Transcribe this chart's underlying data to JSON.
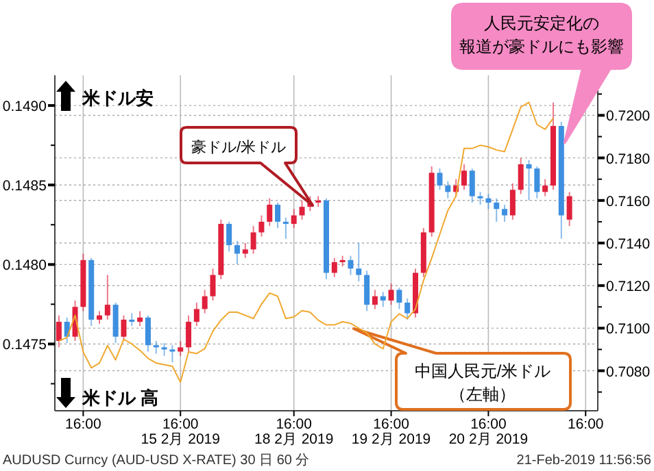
{
  "chart_data": {
    "type": "candlestick",
    "categories": [
      null,
      null,
      null,
      "16:00",
      null,
      null,
      null,
      null,
      null,
      null,
      null,
      null,
      null,
      null,
      null,
      "16:00\n15 2月 2019",
      null,
      null,
      null,
      null,
      null,
      null,
      null,
      null,
      null,
      null,
      null,
      null,
      null,
      "16:00\n18 2月 2019",
      null,
      null,
      null,
      null,
      null,
      null,
      null,
      null,
      null,
      null,
      null,
      "16:00\n19 2月 2019",
      null,
      null,
      null,
      null,
      null,
      null,
      null,
      null,
      null,
      null,
      null,
      "16:00\n20 2月 2019",
      null,
      null,
      null,
      null,
      null,
      null,
      null,
      null,
      null,
      null,
      null,
      "16:00",
      null
    ],
    "ylim": [
      0.14708,
      0.14919
    ],
    "yticks": [
      {
        "value": 0.1475,
        "label": "0.1475"
      },
      {
        "value": 0.148,
        "label": "0.1480"
      },
      {
        "value": 0.1485,
        "label": "0.1485"
      },
      {
        "value": 0.149,
        "label": "0.1490"
      },
      {
        "value": 0.14725,
        "label": null
      },
      {
        "value": 0.14775,
        "label": null
      },
      {
        "value": 0.14825,
        "label": null
      },
      {
        "value": 0.14875,
        "label": null
      }
    ],
    "y2lim": [
      0.70612,
      0.72188
    ],
    "y2ticks": [
      {
        "value": 0.708,
        "label": "0.7080"
      },
      {
        "value": 0.71,
        "label": "0.7100"
      },
      {
        "value": 0.712,
        "label": "0.7120"
      },
      {
        "value": 0.714,
        "label": "0.7140"
      },
      {
        "value": 0.716,
        "label": "0.7160"
      },
      {
        "value": 0.718,
        "label": "0.7180"
      },
      {
        "value": 0.72,
        "label": "0.7200"
      },
      {
        "value": 0.707,
        "label": null
      },
      {
        "value": 0.709,
        "label": null
      },
      {
        "value": 0.711,
        "label": null
      },
      {
        "value": 0.713,
        "label": null
      },
      {
        "value": 0.715,
        "label": null
      },
      {
        "value": 0.717,
        "label": null
      },
      {
        "value": 0.719,
        "label": null
      },
      {
        "value": 0.721,
        "label": null
      }
    ],
    "grid": true,
    "series": [
      {
        "type": "line",
        "color": "#f0a830",
        "values": [
          0.14752,
          0.14754,
          0.14768,
          0.14745,
          0.14735,
          0.14738,
          0.14749,
          0.1474,
          0.14753,
          0.1475,
          0.14746,
          0.14741,
          0.14738,
          0.14737,
          0.14736,
          0.14726,
          0.14745,
          0.14744,
          0.14747,
          0.14758,
          0.14765,
          0.1477,
          0.1477,
          0.14768,
          0.14766,
          0.14775,
          0.14782,
          0.1478,
          0.14766,
          0.14767,
          0.14771,
          0.1477,
          0.14765,
          0.14762,
          0.14762,
          0.14764,
          0.14763,
          0.1476,
          0.14757,
          0.1475,
          0.14747,
          0.14764,
          0.14769,
          0.14766,
          0.14772,
          0.1479,
          0.14804,
          0.14819,
          0.14834,
          0.14843,
          0.14873,
          0.14873,
          0.14875,
          0.14874,
          0.14872,
          0.14871,
          0.14885,
          0.14899,
          0.14902,
          0.14888,
          0.14885,
          0.14892,
          null,
          null,
          null,
          null,
          null
        ]
      },
      {
        "axis": "y2",
        "ohlc": [
          [
            0.7094,
            0.7106,
            0.7091,
            0.7103
          ],
          [
            0.7103,
            0.7105,
            0.7093,
            0.7096
          ],
          [
            0.7096,
            0.7113,
            0.7094,
            0.711
          ],
          [
            0.711,
            0.7135,
            0.7108,
            0.7132
          ],
          [
            0.7132,
            0.7133,
            0.7101,
            0.7104
          ],
          [
            0.7104,
            0.7108,
            0.7102,
            0.7106
          ],
          [
            0.7106,
            0.7125,
            0.7104,
            0.7111
          ],
          [
            0.7111,
            0.7112,
            0.7093,
            0.7096
          ],
          [
            0.7096,
            0.7106,
            0.7094,
            0.7104
          ],
          [
            0.7104,
            0.7107,
            0.7101,
            0.7103
          ],
          [
            0.7103,
            0.7108,
            0.7101,
            0.7105
          ],
          [
            0.7105,
            0.7106,
            0.7089,
            0.7092
          ],
          [
            0.7092,
            0.7094,
            0.7088,
            0.7091
          ],
          [
            0.7091,
            0.7093,
            0.7087,
            0.709
          ],
          [
            0.709,
            0.7092,
            0.7084,
            0.7089
          ],
          [
            0.7089,
            0.7094,
            0.7087,
            0.7091
          ],
          [
            0.7091,
            0.7106,
            0.7089,
            0.7103
          ],
          [
            0.7103,
            0.7112,
            0.7101,
            0.7109
          ],
          [
            0.7109,
            0.7118,
            0.7107,
            0.7115
          ],
          [
            0.7115,
            0.7128,
            0.7113,
            0.7125
          ],
          [
            0.7125,
            0.7151,
            0.7123,
            0.7149
          ],
          [
            0.7149,
            0.715,
            0.7136,
            0.7139
          ],
          [
            0.7139,
            0.7141,
            0.713,
            0.7135
          ],
          [
            0.7135,
            0.714,
            0.7133,
            0.7137
          ],
          [
            0.7137,
            0.7148,
            0.7135,
            0.7145
          ],
          [
            0.7145,
            0.7153,
            0.7143,
            0.715
          ],
          [
            0.715,
            0.7161,
            0.7148,
            0.7158
          ],
          [
            0.7158,
            0.7159,
            0.7147,
            0.715
          ],
          [
            0.715,
            0.7152,
            0.7142,
            0.7149
          ],
          [
            0.7149,
            0.7156,
            0.7147,
            0.7153
          ],
          [
            0.7153,
            0.716,
            0.7151,
            0.7157
          ],
          [
            0.7157,
            0.7162,
            0.7155,
            0.7159
          ],
          [
            0.7159,
            0.7162,
            0.7157,
            0.716
          ],
          [
            0.716,
            0.7161,
            0.7123,
            0.7126
          ],
          [
            0.7126,
            0.7133,
            0.7124,
            0.7131
          ],
          [
            0.7131,
            0.7134,
            0.7129,
            0.7132
          ],
          [
            0.7132,
            0.7134,
            0.7125,
            0.7128
          ],
          [
            0.7128,
            0.714,
            0.7122,
            0.7125
          ],
          [
            0.7125,
            0.7127,
            0.7108,
            0.7111
          ],
          [
            0.7111,
            0.7118,
            0.7109,
            0.7115
          ],
          [
            0.7115,
            0.7117,
            0.711,
            0.7113
          ],
          [
            0.7113,
            0.7121,
            0.7111,
            0.7118
          ],
          [
            0.7118,
            0.7119,
            0.7109,
            0.7112
          ],
          [
            0.7112,
            0.7114,
            0.7104,
            0.7107
          ],
          [
            0.7107,
            0.7128,
            0.7105,
            0.7126
          ],
          [
            0.7126,
            0.7147,
            0.7124,
            0.7145
          ],
          [
            0.7145,
            0.7176,
            0.7143,
            0.7173
          ],
          [
            0.7173,
            0.7175,
            0.7165,
            0.7167
          ],
          [
            0.7167,
            0.7169,
            0.7161,
            0.7164
          ],
          [
            0.7164,
            0.717,
            0.7162,
            0.7167
          ],
          [
            0.7167,
            0.7177,
            0.7165,
            0.7174
          ],
          [
            0.7174,
            0.7175,
            0.7159,
            0.7162
          ],
          [
            0.7162,
            0.7164,
            0.7158,
            0.7161
          ],
          [
            0.7161,
            0.7163,
            0.7156,
            0.7159
          ],
          [
            0.7159,
            0.7161,
            0.715,
            0.7156
          ],
          [
            0.7156,
            0.7158,
            0.715,
            0.7153
          ],
          [
            0.7153,
            0.7168,
            0.7151,
            0.7165
          ],
          [
            0.7165,
            0.718,
            0.7163,
            0.7177
          ],
          [
            0.7177,
            0.7179,
            0.716,
            0.7175
          ],
          [
            0.7175,
            0.7176,
            0.7161,
            0.7164
          ],
          [
            0.7164,
            0.717,
            0.7162,
            0.7167
          ],
          [
            0.7167,
            0.7206,
            0.7165,
            0.7195
          ],
          [
            0.7195,
            0.7197,
            0.7142,
            0.7153
          ],
          [
            0.7151,
            0.7164,
            0.7148,
            0.7162
          ],
          null,
          null,
          null
        ],
        "colors": [
          "#e0203c",
          "#3d8fe0",
          "#e0203c",
          "#e0203c",
          "#3d8fe0",
          "#e0203c",
          "#e0203c",
          "#3d8fe0",
          "#e0203c",
          "#3d8fe0",
          "#e0203c",
          "#3d8fe0",
          "#3d8fe0",
          "#3d8fe0",
          "#3d8fe0",
          "#e0203c",
          "#e0203c",
          "#e0203c",
          "#e0203c",
          "#e0203c",
          "#e0203c",
          "#3d8fe0",
          "#3d8fe0",
          "#e0203c",
          "#e0203c",
          "#e0203c",
          "#e0203c",
          "#3d8fe0",
          "#3d8fe0",
          "#e0203c",
          "#e0203c",
          "#e0203c",
          "#e0203c",
          "#3d8fe0",
          "#e0203c",
          "#e0203c",
          "#3d8fe0",
          "#3d8fe0",
          "#3d8fe0",
          "#e0203c",
          "#3d8fe0",
          "#e0203c",
          "#3d8fe0",
          "#3d8fe0",
          "#e0203c",
          "#e0203c",
          "#e0203c",
          "#3d8fe0",
          "#3d8fe0",
          "#e0203c",
          "#e0203c",
          "#3d8fe0",
          "#3d8fe0",
          "#3d8fe0",
          "#3d8fe0",
          "#3d8fe0",
          "#e0203c",
          "#e0203c",
          "#3d8fe0",
          "#3d8fe0",
          "#e0203c",
          "#e0203c",
          "#3d8fe0",
          "#e0203c",
          null,
          null,
          null
        ]
      }
    ],
    "annotations": [
      "米ドル安",
      "米ドル 高",
      "豪ドル/米ドル",
      "中国人民元/米ドル",
      "（左軸）",
      "人民元安定化の",
      "報道が豪ドルにも影響",
      "AUDUSD Curncy (AUD-USD X-RATE) 30 日 60 分",
      "21-Feb-2019 11:56:56"
    ]
  }
}
